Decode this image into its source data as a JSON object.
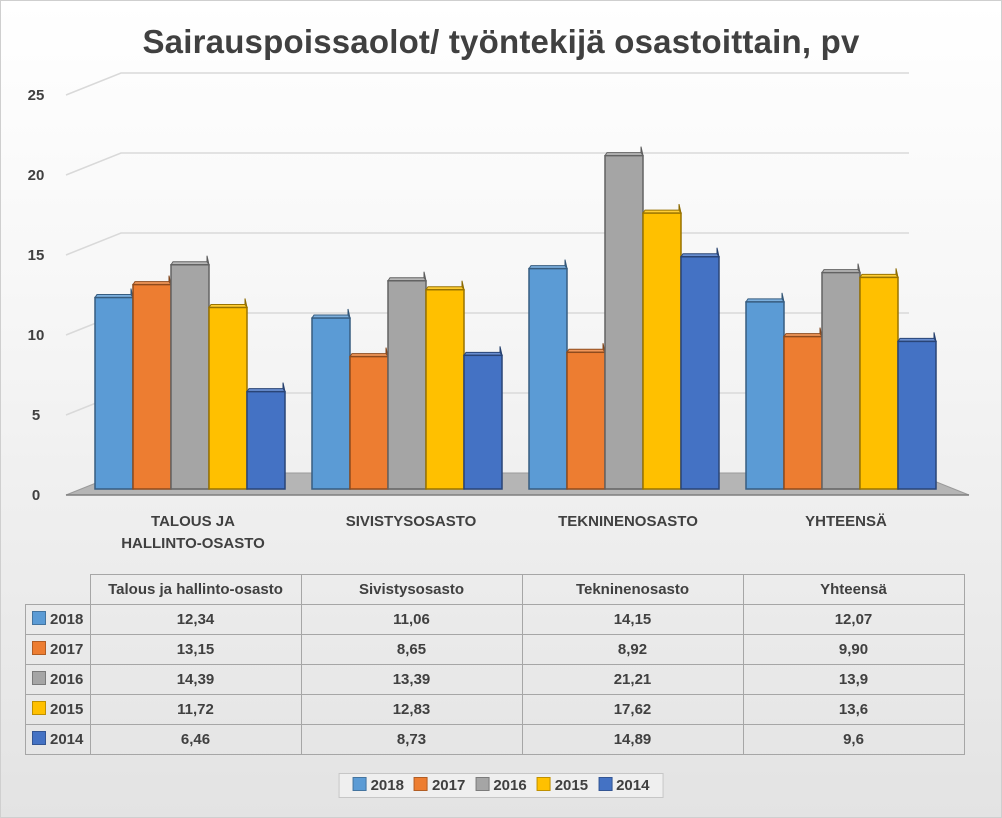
{
  "chart_data": {
    "type": "bar",
    "title": "Sairauspoissaolot/ työntekijä osastoittain, pv",
    "xlabel": "",
    "ylabel": "",
    "ylim": [
      0,
      25
    ],
    "yticks": [
      "0",
      "5",
      "10",
      "15",
      "20",
      "25"
    ],
    "categories": [
      "TALOUS JA HALLINTO-OSASTO",
      "SIVISTYSOSASTO",
      "TEKNINENOSASTO",
      "YHTEENSÄ"
    ],
    "category_lines": [
      [
        "TALOUS JA",
        "HALLINTO-OSASTO"
      ],
      [
        "SIVISTYSOSASTO"
      ],
      [
        "TEKNINENOSASTO"
      ],
      [
        "YHTEENSÄ"
      ]
    ],
    "series": [
      {
        "name": "2018",
        "color": "#5b9bd5",
        "values": [
          12.34,
          11.06,
          14.15,
          12.07
        ]
      },
      {
        "name": "2017",
        "color": "#ed7d31",
        "values": [
          13.15,
          8.65,
          8.92,
          9.9
        ]
      },
      {
        "name": "2016",
        "color": "#a5a5a5",
        "values": [
          14.39,
          13.39,
          21.21,
          13.9
        ]
      },
      {
        "name": "2015",
        "color": "#ffc000",
        "values": [
          11.72,
          12.83,
          17.62,
          13.6
        ]
      },
      {
        "name": "2014",
        "color": "#4472c4",
        "values": [
          6.46,
          8.73,
          14.89,
          9.6
        ]
      }
    ],
    "legend_position": "bottom",
    "grid": true
  },
  "table": {
    "headers": [
      "Talous ja hallinto-osasto",
      "Sivistysosasto",
      "Tekninenosasto",
      "Yhteensä"
    ],
    "rows": [
      {
        "series": "2018",
        "color": "#5b9bd5",
        "cells": [
          "12,34",
          "11,06",
          "14,15",
          "12,07"
        ]
      },
      {
        "series": "2017",
        "color": "#ed7d31",
        "cells": [
          "13,15",
          "8,65",
          "8,92",
          "9,90"
        ]
      },
      {
        "series": "2016",
        "color": "#a5a5a5",
        "cells": [
          "14,39",
          "13,39",
          "21,21",
          "13,9"
        ]
      },
      {
        "series": "2015",
        "color": "#ffc000",
        "cells": [
          "11,72",
          "12,83",
          "17,62",
          "13,6"
        ]
      },
      {
        "series": "2014",
        "color": "#4472c4",
        "cells": [
          "6,46",
          "8,73",
          "14,89",
          "9,6"
        ]
      }
    ]
  }
}
